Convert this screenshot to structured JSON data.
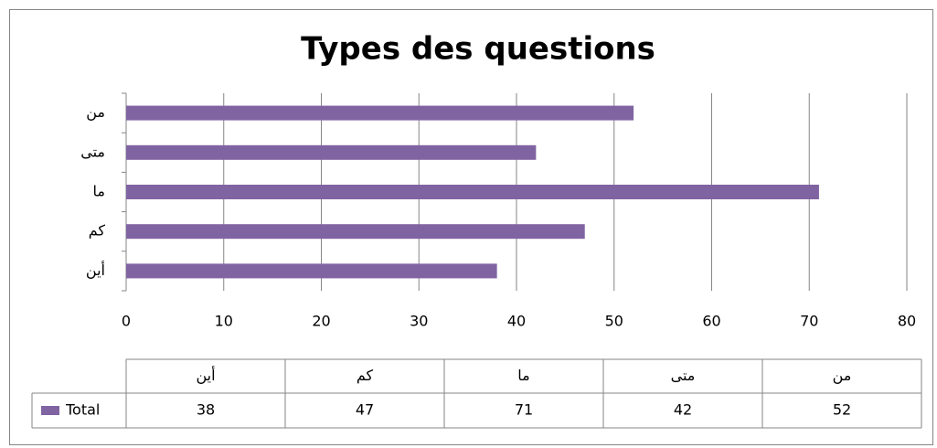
{
  "chart_data": {
    "type": "bar",
    "orientation": "horizontal",
    "title": "Types des questions",
    "categories": [
      "أين",
      "كم",
      "ما",
      "متى",
      "من"
    ],
    "series": [
      {
        "name": "Total",
        "color": "#8064a2",
        "values": [
          38,
          47,
          71,
          42,
          52
        ]
      }
    ],
    "xlim": [
      0,
      80
    ],
    "xticks": [
      0,
      10,
      20,
      30,
      40,
      50,
      60,
      70,
      80
    ],
    "grid": true
  }
}
